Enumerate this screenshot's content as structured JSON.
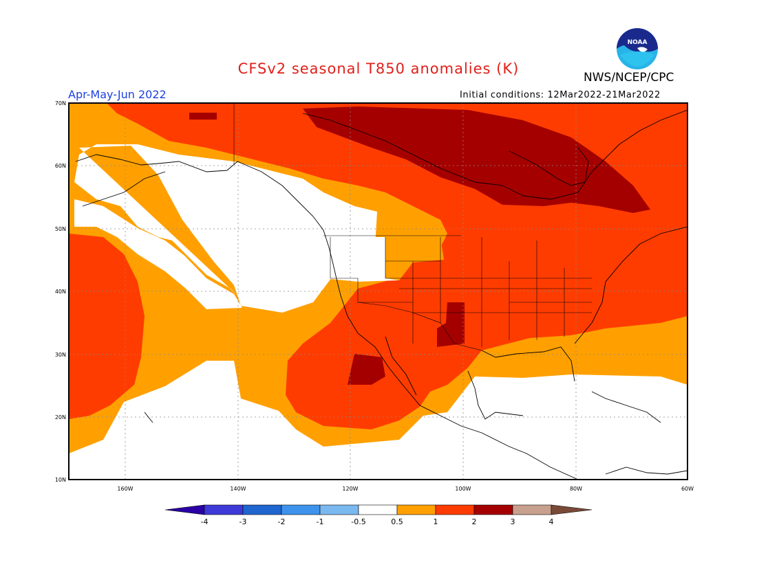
{
  "title": "CFSv2 seasonal T850 anomalies (K)",
  "period": "Apr-May-Jun 2022",
  "initial_conditions": "Initial conditions: 12Mar2022-21Mar2022",
  "agency": "NWS/NCEP/CPC",
  "logo": {
    "text": "NOAA",
    "icon": "noaa-logo-icon"
  },
  "axes": {
    "lat_labels": [
      "70N",
      "60N",
      "50N",
      "40N",
      "30N",
      "20N",
      "10N"
    ],
    "lon_labels": [
      "160W",
      "140W",
      "120W",
      "100W",
      "80W",
      "60W"
    ]
  },
  "colorbar": {
    "labels": [
      "-4",
      "-3",
      "-2",
      "-1",
      "-0.5",
      "0.5",
      "1",
      "2",
      "3",
      "4"
    ],
    "colors": [
      "#2a00a6",
      "#3e3ad8",
      "#1f66d0",
      "#3d93ec",
      "#7ab8f0",
      "#ffffff",
      "#ffa000",
      "#ff3c00",
      "#a50000",
      "#c8a08e",
      "#7a4a38"
    ]
  }
}
